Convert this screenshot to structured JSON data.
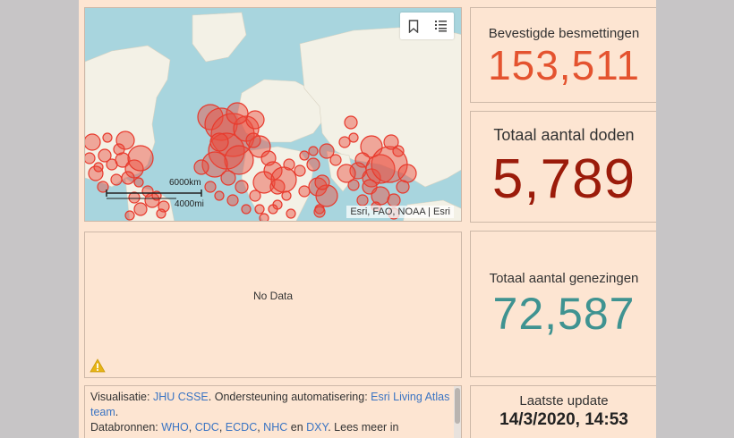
{
  "map": {
    "attribution": "Esri, FAO, NOAA | Esri",
    "scale": {
      "km": "6000km",
      "mi": "4000mi"
    },
    "bookmark_icon": "bookmark-icon",
    "legend_icon": "list-icon"
  },
  "confirmed": {
    "label": "Bevestigde besmettingen",
    "value": "153,511",
    "color": "#e4532f"
  },
  "deaths": {
    "label": "Totaal aantal doden",
    "value": "5,789",
    "color": "#9b1b0a"
  },
  "recovered": {
    "label": "Totaal aantal genezingen",
    "value": "72,587",
    "color": "#3f9391"
  },
  "chart": {
    "no_data": "No Data",
    "warning_icon": "warning-icon"
  },
  "update": {
    "label": "Laatste update",
    "value": "14/3/2020, 14:53"
  },
  "info": {
    "t1": "Visualisatie: ",
    "l1": "JHU CSSE",
    "t2": ". Ondersteuning automatisering: ",
    "l2": "Esri Living Atlas team",
    "t3": ".",
    "t4": "Databronnen: ",
    "l3": "WHO",
    "s1": ", ",
    "l4": "CDC",
    "s2": ", ",
    "l5": "ECDC",
    "s3": ", ",
    "l6": "NHC",
    "t5": " en ",
    "l7": "DXY",
    "t6": ". Lees meer in"
  }
}
